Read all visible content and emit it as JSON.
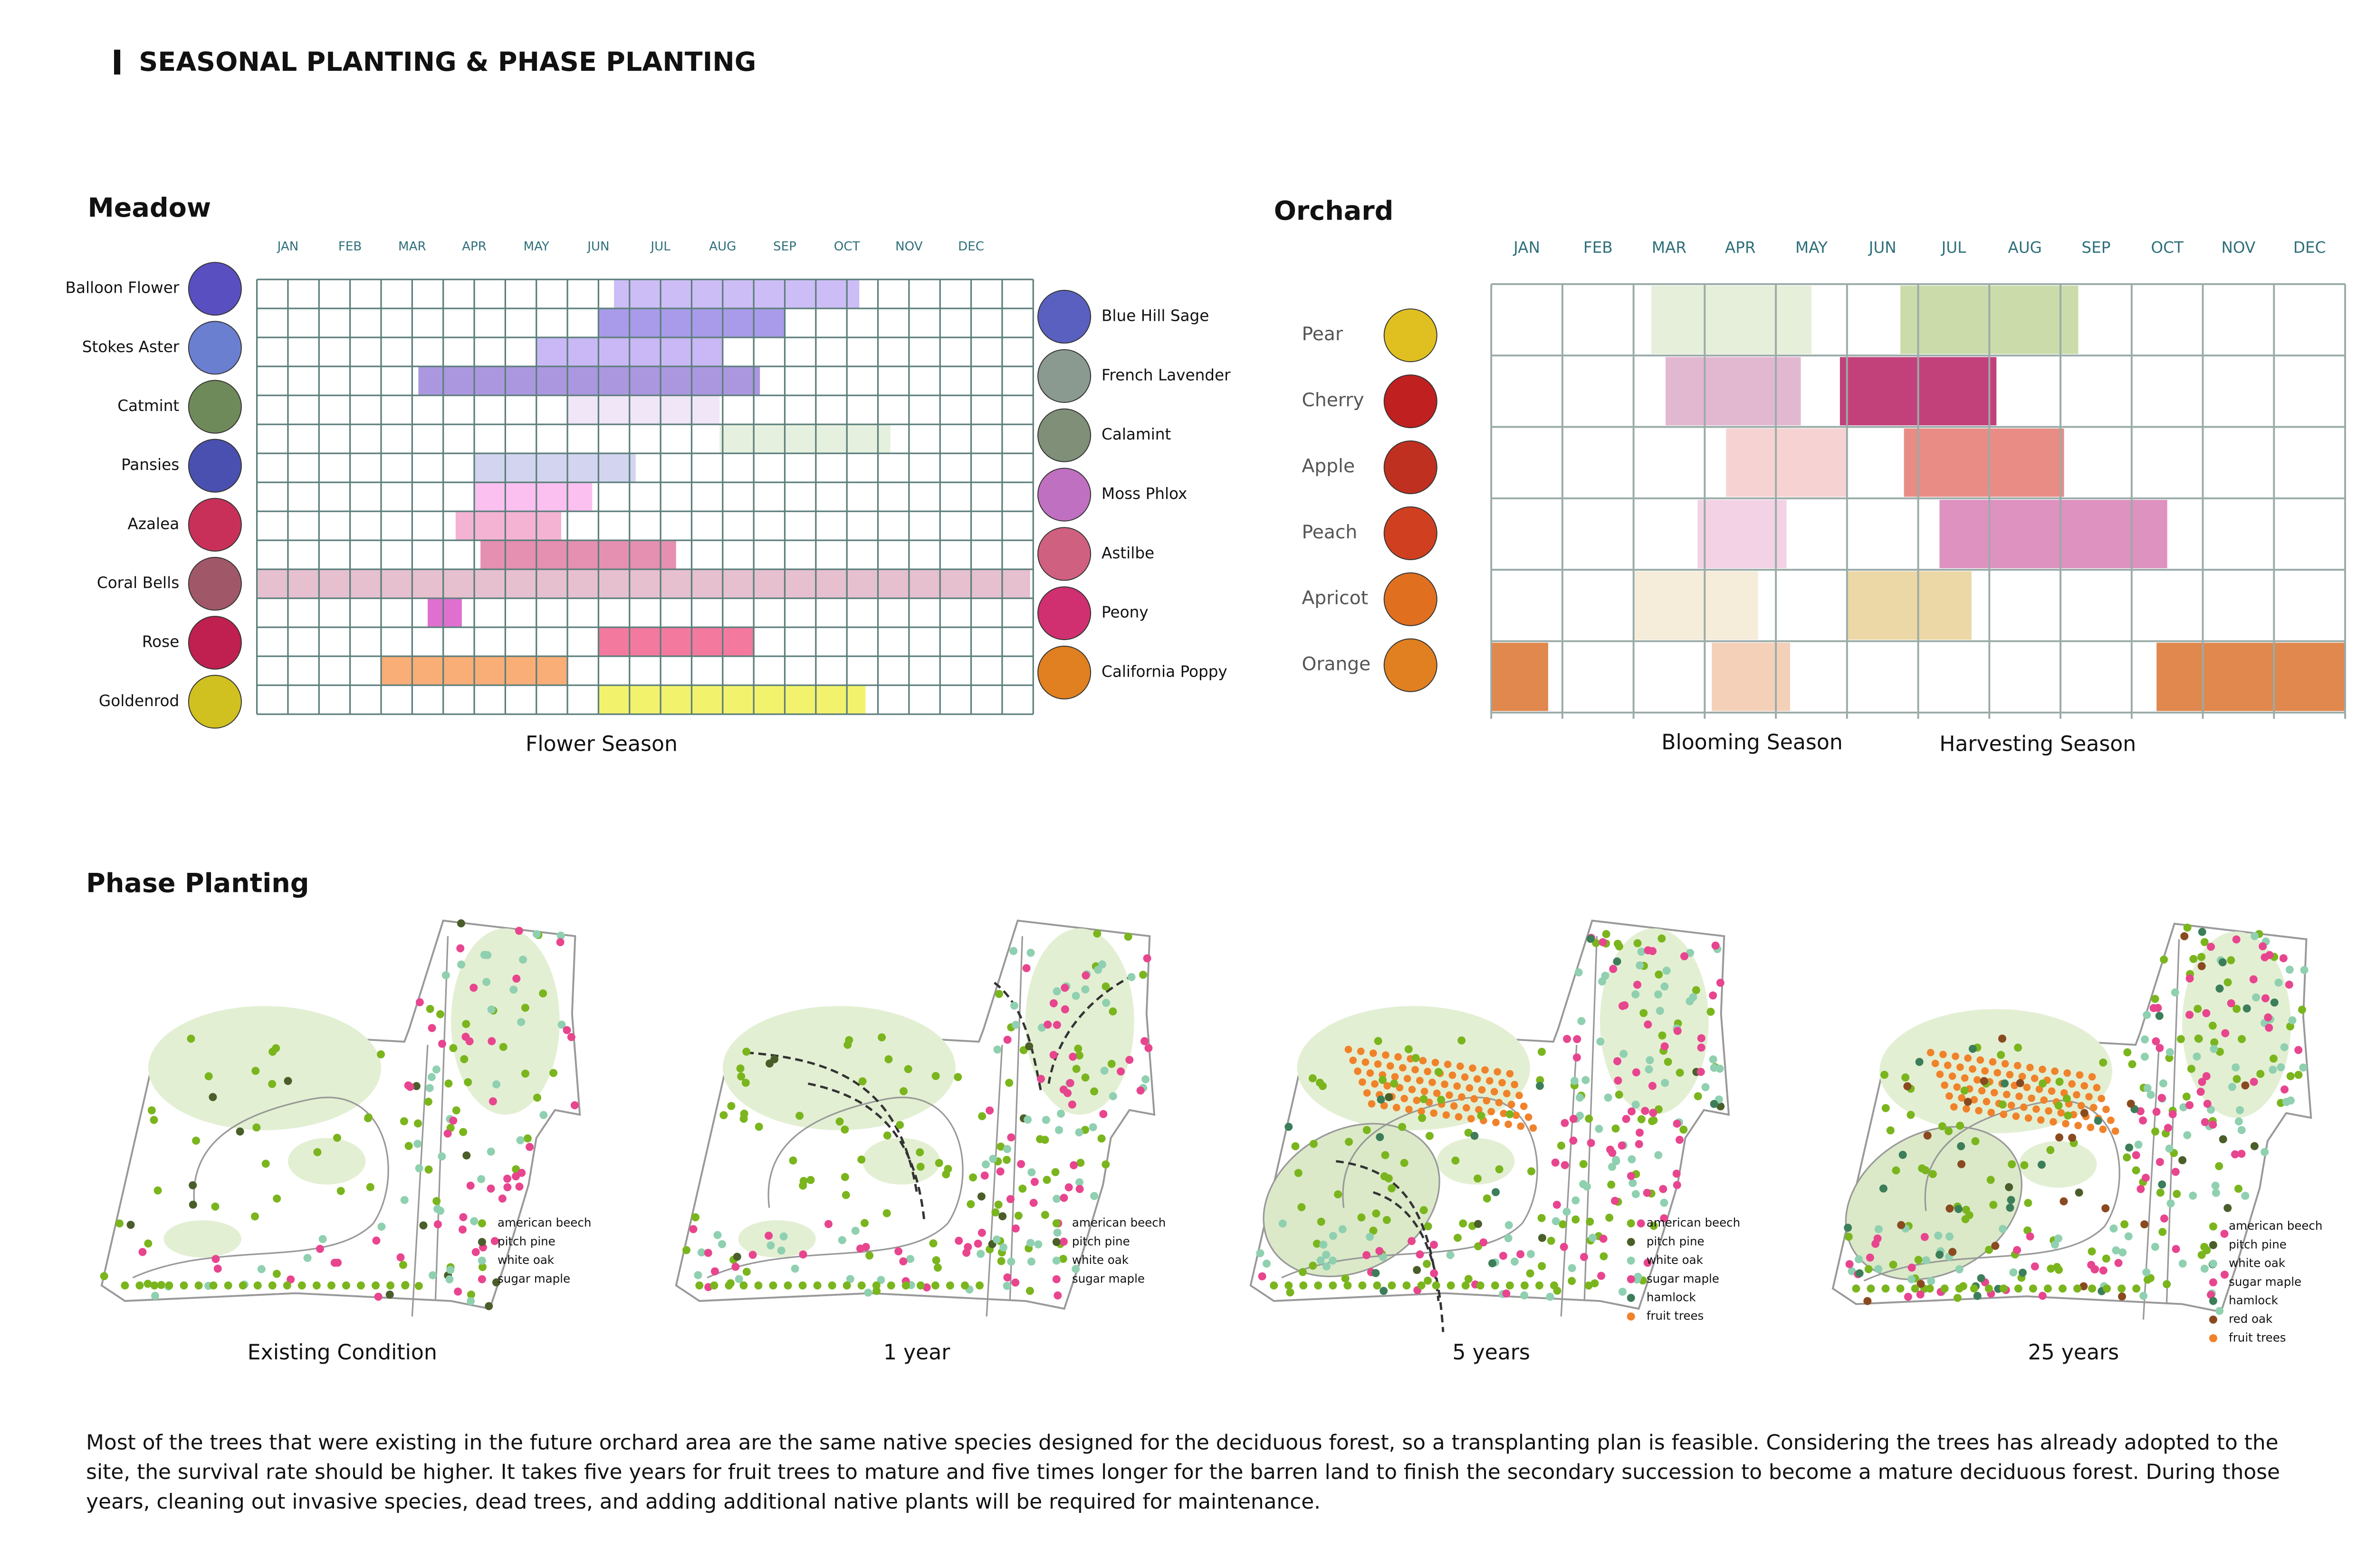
{
  "header": {
    "title": "SEASONAL PLANTING & PHASE PLANTING"
  },
  "meadow": {
    "title": "Meadow",
    "months": [
      "JAN",
      "FEB",
      "MAR",
      "APR",
      "MAY",
      "JUN",
      "JUL",
      "AUG",
      "SEP",
      "OCT",
      "NOV",
      "DEC"
    ],
    "left_plants": [
      "Balloon Flower",
      "Stokes Aster",
      "Catmint",
      "Pansies",
      "Azalea",
      "Coral Bells",
      "Rose",
      "Goldenrod"
    ],
    "right_plants": [
      "Blue Hill Sage",
      "French Lavender",
      "Calamint",
      "Moss Phlox",
      "Astilbe",
      "Peony",
      "California Poppy"
    ],
    "bars": [
      {
        "start": 5.75,
        "end": 9.7,
        "color": "#cdbdf6"
      },
      {
        "start": 5.5,
        "end": 8.5,
        "color": "#a99bea"
      },
      {
        "start": 4.5,
        "end": 7.5,
        "color": "#c9b8f5"
      },
      {
        "start": 2.6,
        "end": 8.1,
        "color": "#ab97e0"
      },
      {
        "start": 5,
        "end": 7.45,
        "color": "#f1e5f8"
      },
      {
        "start": 7.45,
        "end": 10.2,
        "color": "#e5f0df"
      },
      {
        "start": 3.5,
        "end": 6.1,
        "color": "#d3d5f0"
      },
      {
        "start": 3.5,
        "end": 5.4,
        "color": "#fbc0f0"
      },
      {
        "start": 3.2,
        "end": 4.9,
        "color": "#f4b3d3"
      },
      {
        "start": 3.6,
        "end": 6.75,
        "color": "#e590b0"
      },
      {
        "start": 0,
        "end": 12.45,
        "color": "#e6c0cf"
      },
      {
        "start": 2.75,
        "end": 3.3,
        "color": "#e070d0"
      },
      {
        "start": 5.5,
        "end": 8,
        "color": "#f4799f"
      },
      {
        "start": 2,
        "end": 5,
        "color": "#f9ad77"
      },
      {
        "start": 5.5,
        "end": 9.8,
        "color": "#f3f26d"
      }
    ],
    "caption": "Flower Season"
  },
  "orchard": {
    "title": "Orchard",
    "months": [
      "JAN",
      "FEB",
      "MAR",
      "APR",
      "MAY",
      "JUN",
      "JUL",
      "AUG",
      "SEP",
      "OCT",
      "NOV",
      "DEC"
    ],
    "fruits": [
      {
        "name": "Pear",
        "bloom": {
          "start": 2.25,
          "end": 4.5
        },
        "bloom_color": "#e6efd9",
        "harvest": [
          {
            "start": 5.75,
            "end": 8.25
          }
        ],
        "harvest_color": "#cbdcaa"
      },
      {
        "name": "Cherry",
        "bloom": {
          "start": 2.45,
          "end": 4.35
        },
        "bloom_color": "#e2b8d0",
        "harvest": [
          {
            "start": 4.9,
            "end": 7.1
          }
        ],
        "harvest_color": "#c2417b"
      },
      {
        "name": "Apple",
        "bloom": {
          "start": 3.3,
          "end": 5
        },
        "bloom_color": "#f7d2d2",
        "harvest": [
          {
            "start": 5.8,
            "end": 8.05
          }
        ],
        "harvest_color": "#e98c85"
      },
      {
        "name": "Peach",
        "bloom": {
          "start": 2.9,
          "end": 4.15
        },
        "bloom_color": "#f2d2e4",
        "harvest": [
          {
            "start": 6.3,
            "end": 9.5
          }
        ],
        "harvest_color": "#de92c0"
      },
      {
        "name": "Apricot",
        "bloom": {
          "start": 2,
          "end": 3.75
        },
        "bloom_color": "#f5ecd9",
        "harvest": [
          {
            "start": 5,
            "end": 6.75
          }
        ],
        "harvest_color": "#ecd8a6"
      },
      {
        "name": "Orange",
        "bloom": {
          "start": 3.1,
          "end": 4.2
        },
        "bloom_color": "#f5d0b9",
        "harvest": [
          {
            "start": 0,
            "end": 0.8
          },
          {
            "start": 9.35,
            "end": 12
          }
        ],
        "harvest_color": "#e0884d"
      }
    ],
    "bloom_caption": "Blooming Season",
    "harvest_caption": "Harvesting Season"
  },
  "phase": {
    "title": "Phase Planting",
    "panels": [
      {
        "label": "Existing Condition",
        "legend": [
          {
            "name": "american beech",
            "color": "#7ab51d"
          },
          {
            "name": "pitch pine",
            "color": "#4a5e2a"
          },
          {
            "name": "white oak",
            "color": "#8fd0b0"
          },
          {
            "name": "sugar maple",
            "color": "#e8458f"
          }
        ]
      },
      {
        "label": "1  year",
        "legend": [
          {
            "name": "american beech",
            "color": "#7ab51d"
          },
          {
            "name": "pitch pine",
            "color": "#4a5e2a"
          },
          {
            "name": "white oak",
            "color": "#8fd0b0"
          },
          {
            "name": "sugar maple",
            "color": "#e8458f"
          }
        ]
      },
      {
        "label": "5  years",
        "legend": [
          {
            "name": "american beech",
            "color": "#7ab51d"
          },
          {
            "name": "pitch pine",
            "color": "#4a5e2a"
          },
          {
            "name": "white oak",
            "color": "#8fd0b0"
          },
          {
            "name": "sugar maple",
            "color": "#e8458f"
          },
          {
            "name": "hamlock",
            "color": "#3d7e5a"
          },
          {
            "name": "fruit trees",
            "color": "#f0822a"
          }
        ]
      },
      {
        "label": "25  years",
        "legend": [
          {
            "name": "american beech",
            "color": "#7ab51d"
          },
          {
            "name": "pitch pine",
            "color": "#4a5e2a"
          },
          {
            "name": "white oak",
            "color": "#8fd0b0"
          },
          {
            "name": "sugar maple",
            "color": "#e8458f"
          },
          {
            "name": "hamlock",
            "color": "#3d7e5a"
          },
          {
            "name": "red oak",
            "color": "#8a4a20"
          },
          {
            "name": "fruit trees",
            "color": "#f0822a"
          }
        ]
      }
    ]
  },
  "description": [
    "Most of the trees that were existing in the future orchard area are the same native species designed for the deciduous forest, so a transplanting plan is feasible. Considering the trees has already adopted to the",
    "site, the survival rate should be higher. It takes five years for fruit trees to mature and five times longer for the barren land to finish the secondary succession to become a mature deciduous forest. During those",
    "years, cleaning out invasive species, dead trees, and adding additional native plants will be required for maintenance."
  ]
}
